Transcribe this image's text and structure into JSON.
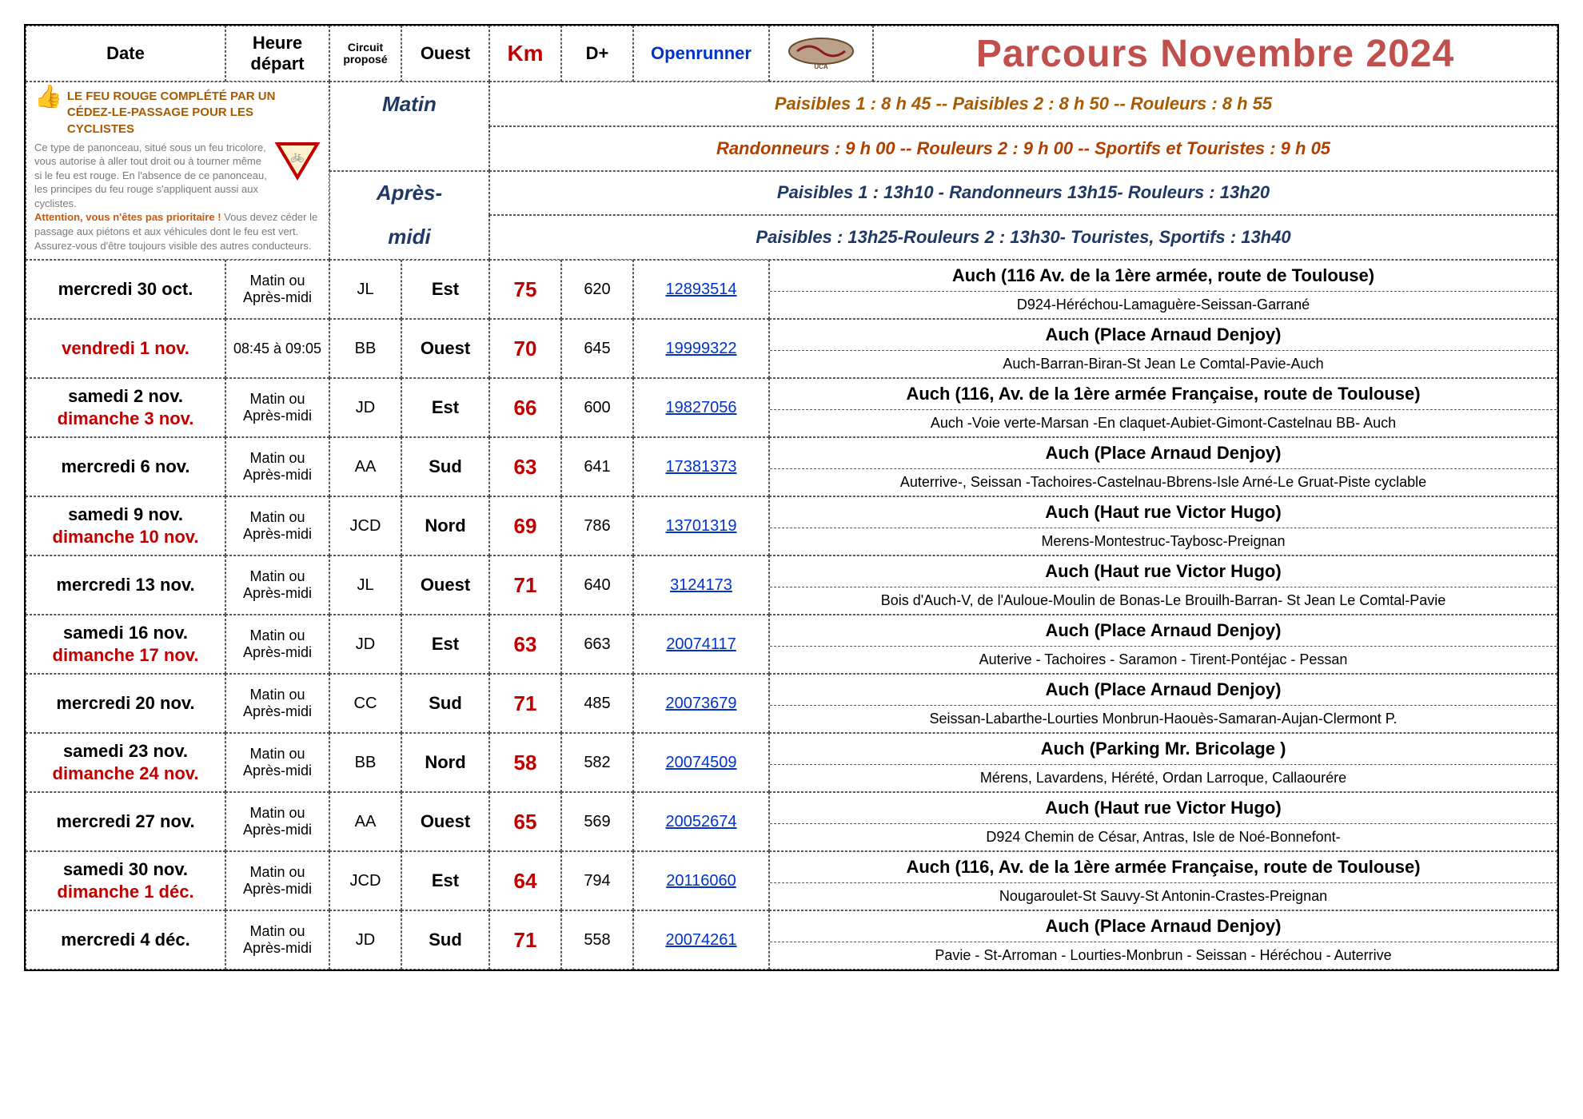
{
  "header": {
    "date": "Date",
    "heure": "Heure départ",
    "circuit": "Circuit proposé",
    "ouest": "Ouest",
    "km": "Km",
    "dplus": "D+",
    "openrunner": "Openrunner",
    "title": "Parcours  Novembre  2024"
  },
  "colors": {
    "km": "#c00000",
    "openrunner": "#0033cc",
    "title": "#c0504d",
    "matin": "#1f3864",
    "sched_pais": "#a85a00",
    "sched_rand": "#b04000",
    "sched_pm": "#1f3864",
    "date_red": "#c00000",
    "info_grey": "#7a7a7a",
    "info_orange": "#c55a11",
    "feu_brown": "#a85a00",
    "thumb": "#f7a500"
  },
  "info": {
    "feu_title": "LE FEU ROUGE COMPLÉTÉ PAR UN CÉDEZ-LE-PASSAGE POUR LES CYCLISTES",
    "body1": "Ce type de panonceau, situé sous un feu tricolore, vous autorise à aller tout droit ou à tourner même si le feu est rouge. En l'absence de ce panonceau, les principes du feu rouge s'appliquent aussi aux cyclistes.",
    "warn_label": "Attention, vous n'êtes pas prioritaire !",
    "warn_rest": " Vous devez céder le passage aux piétons et aux véhicules dont le feu est vert.",
    "body3": "Assurez-vous d'être toujours visible des autres conducteurs."
  },
  "period_labels": {
    "matin": "Matin",
    "apres": "Après-midi"
  },
  "schedule": {
    "matin1": "Paisibles 1 : 8 h 45 -- Paisibles 2 : 8 h 50 -- Rouleurs : 8 h 55",
    "matin2": "Randonneurs : 9 h 00  -- Rouleurs 2 : 9 h 00 -- Sportifs et Touristes : 9 h 05",
    "pm1": "Paisibles 1 : 13h10 - Randonneurs 13h15- Rouleurs : 13h20",
    "pm2": "Paisibles : 13h25-Rouleurs 2 : 13h30- Touristes, Sportifs : 13h40"
  },
  "rows": [
    {
      "dates": [
        "mercredi 30 oct."
      ],
      "date_red": [
        false
      ],
      "heure": "Matin ou Après-midi",
      "circ": "JL",
      "dir": "Est",
      "km": "75",
      "dplus": "620",
      "open": "12893514",
      "dest": "Auch (116 Av. de la 1ère armée, route de Toulouse)",
      "route": "D924-Héréchou-Lamaguère-Seissan-Garrané"
    },
    {
      "dates": [
        "vendredi 1 nov."
      ],
      "date_red": [
        true
      ],
      "heure": "08:45 à 09:05",
      "circ": "BB",
      "dir": "Ouest",
      "km": "70",
      "dplus": "645",
      "open": "19999322",
      "dest": "Auch (Place Arnaud Denjoy)",
      "route": "Auch-Barran-Biran-St Jean Le Comtal-Pavie-Auch"
    },
    {
      "dates": [
        "samedi 2 nov.",
        "dimanche 3 nov."
      ],
      "date_red": [
        false,
        true
      ],
      "heure": "Matin ou Après-midi",
      "circ": "JD",
      "dir": "Est",
      "km": "66",
      "dplus": "600",
      "open": "19827056",
      "dest": "Auch (116, Av. de la 1ère armée Française, route de Toulouse)",
      "route": "Auch -Voie verte-Marsan -En claquet-Aubiet-Gimont-Castelnau BB- Auch"
    },
    {
      "dates": [
        "mercredi 6 nov."
      ],
      "date_red": [
        false
      ],
      "heure": "Matin ou Après-midi",
      "circ": "AA",
      "dir": "Sud",
      "km": "63",
      "dplus": "641",
      "open": "17381373",
      "dest": "Auch (Place Arnaud Denjoy)",
      "route": "Auterrive-, Seissan -Tachoires-Castelnau-Bbrens-Isle Arné-Le Gruat-Piste cyclable"
    },
    {
      "dates": [
        "samedi 9 nov.",
        "dimanche 10 nov."
      ],
      "date_red": [
        false,
        true
      ],
      "heure": "Matin ou Après-midi",
      "circ": "JCD",
      "dir": "Nord",
      "km": "69",
      "dplus": "786",
      "open": "13701319",
      "dest": "Auch (Haut rue Victor Hugo)",
      "route": "Merens-Montestruc-Taybosc-Preignan"
    },
    {
      "dates": [
        "mercredi 13 nov."
      ],
      "date_red": [
        false
      ],
      "heure": "Matin ou Après-midi",
      "circ": "JL",
      "dir": "Ouest",
      "km": "71",
      "dplus": "640",
      "open": "3124173",
      "dest": "Auch (Haut rue Victor Hugo)",
      "route": "Bois d'Auch-V, de l'Auloue-Moulin de Bonas-Le Brouilh-Barran- St Jean Le Comtal-Pavie"
    },
    {
      "dates": [
        "samedi 16 nov.",
        "dimanche 17 nov."
      ],
      "date_red": [
        false,
        true
      ],
      "heure": "Matin ou Après-midi",
      "circ": "JD",
      "dir": "Est",
      "km": "63",
      "dplus": "663",
      "open": "20074117",
      "dest": "Auch (Place Arnaud Denjoy)",
      "route": "Auterive - Tachoires - Saramon - Tirent-Pontéjac - Pessan"
    },
    {
      "dates": [
        "mercredi 20 nov."
      ],
      "date_red": [
        false
      ],
      "heure": "Matin ou Après-midi",
      "circ": "CC",
      "dir": "Sud",
      "km": "71",
      "dplus": "485",
      "open": "20073679",
      "dest": "Auch (Place Arnaud Denjoy)",
      "route": "Seissan-Labarthe-Lourties Monbrun-Haouès-Samaran-Aujan-Clermont P."
    },
    {
      "dates": [
        "samedi 23 nov.",
        "dimanche 24 nov."
      ],
      "date_red": [
        false,
        true
      ],
      "heure": "Matin ou Après-midi",
      "circ": "BB",
      "dir": "Nord",
      "km": "58",
      "dplus": "582",
      "open": "20074509",
      "dest": "Auch (Parking Mr. Bricolage )",
      "route": "Mérens, Lavardens, Hérété, Ordan Larroque, Callaourére"
    },
    {
      "dates": [
        "mercredi 27 nov."
      ],
      "date_red": [
        false
      ],
      "heure": "Matin ou Après-midi",
      "circ": "AA",
      "dir": "Ouest",
      "km": "65",
      "dplus": "569",
      "open": "20052674",
      "dest": "Auch (Haut rue Victor Hugo)",
      "route": "D924 Chemin de César, Antras, Isle de Noé-Bonnefont-"
    },
    {
      "dates": [
        "samedi 30 nov.",
        "dimanche 1 déc."
      ],
      "date_red": [
        false,
        true
      ],
      "heure": "Matin ou Après-midi",
      "circ": "JCD",
      "dir": "Est",
      "km": "64",
      "dplus": "794",
      "open": "20116060",
      "dest": "Auch (116, Av. de la 1ère armée Française, route de Toulouse)",
      "route": "Nougaroulet-St Sauvy-St Antonin-Crastes-Preignan"
    },
    {
      "dates": [
        "mercredi 4 déc."
      ],
      "date_red": [
        false
      ],
      "heure": "Matin ou Après-midi",
      "circ": "JD",
      "dir": "Sud",
      "km": "71",
      "dplus": "558",
      "open": "20074261",
      "dest": "Auch (Place Arnaud Denjoy)",
      "route": "Pavie - St-Arroman - Lourties-Monbrun - Seissan - Héréchou - Auterrive"
    }
  ]
}
